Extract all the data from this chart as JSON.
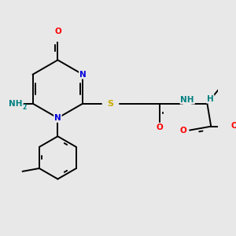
{
  "background_color": "#e8e8e8",
  "colors": {
    "C": "#000000",
    "N": "#0000dd",
    "O": "#ff0000",
    "S": "#ccaa00",
    "H": "#008080",
    "bond": "#000000"
  },
  "bond_lw": 1.4,
  "font_size": 7.5
}
